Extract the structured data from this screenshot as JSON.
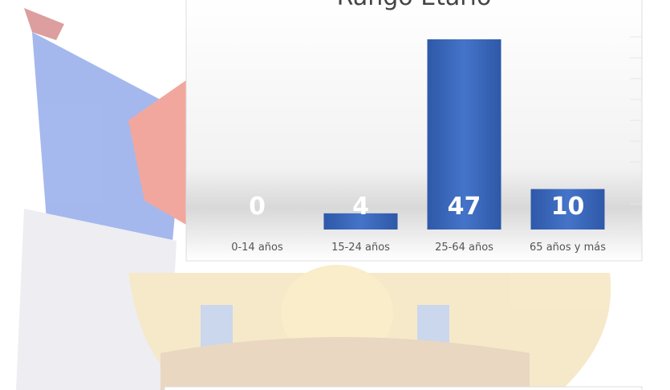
{
  "chart_data": {
    "type": "bar",
    "title": "Rango Etario",
    "categories": [
      "0-14 años",
      "15-24 años",
      "25-64 años",
      "65 años y más"
    ],
    "values": [
      0,
      4,
      47,
      10
    ],
    "color": "#3a66bb"
  }
}
